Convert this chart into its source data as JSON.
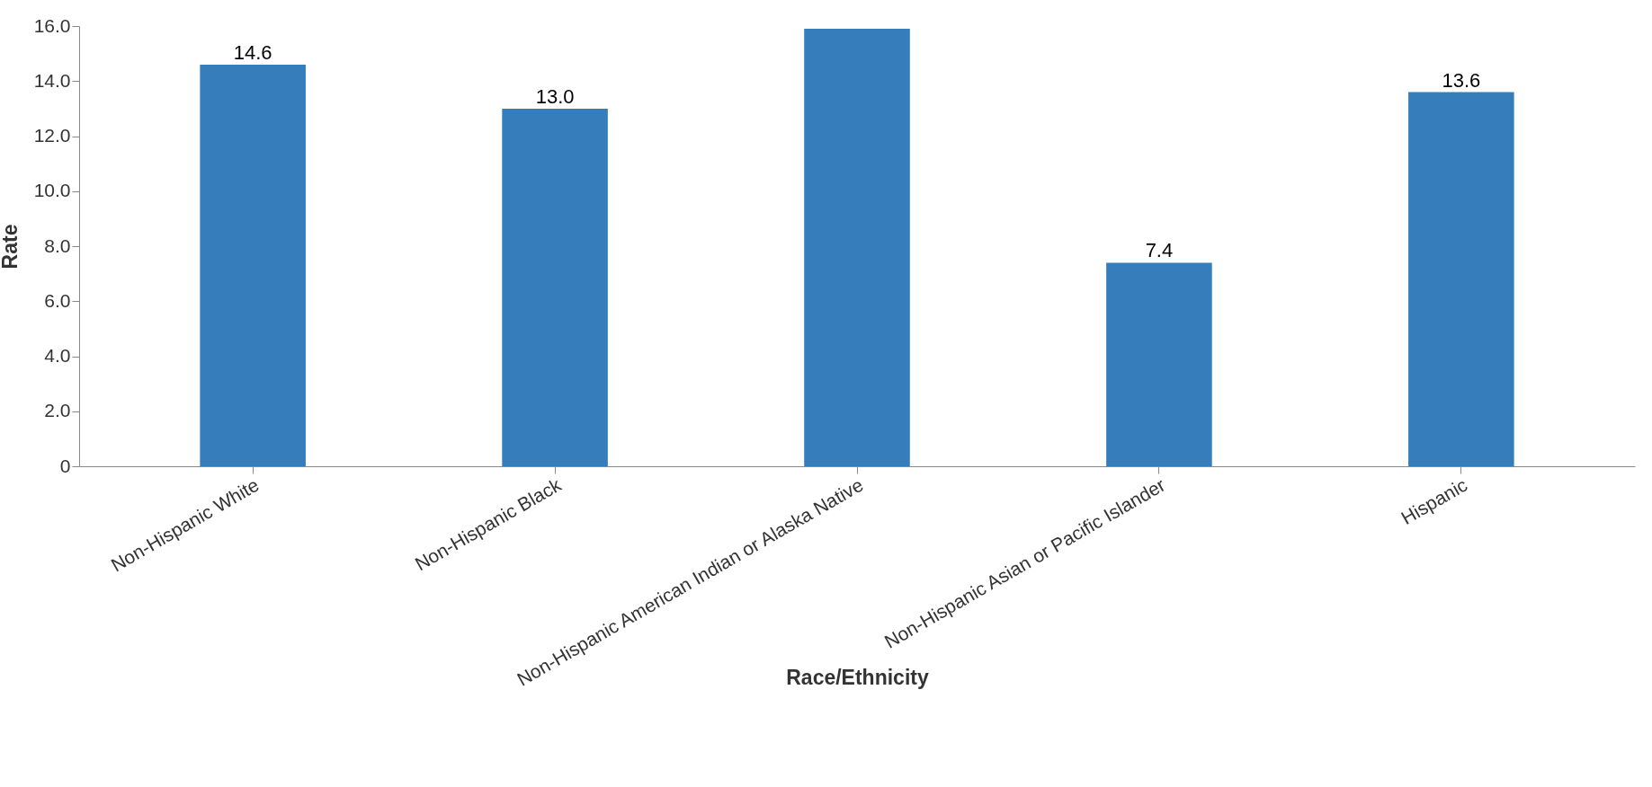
{
  "chart_data": {
    "type": "bar",
    "xlabel": "Race/Ethnicity",
    "ylabel": "Rate",
    "categories": [
      "Non-Hispanic White",
      "Non-Hispanic Black",
      "Non-Hispanic American Indian or Alaska Native",
      "Non-Hispanic Asian or Pacific Islander",
      "Hispanic"
    ],
    "values": [
      14.6,
      13.0,
      15.9,
      7.4,
      13.6
    ],
    "value_labels": [
      "14.6",
      "13.0",
      null,
      "7.4",
      "13.6"
    ],
    "color": "#367ebb",
    "ylim": [
      0,
      16
    ],
    "yticks": [
      0,
      {
        "value": 2,
        "label": "2.0"
      },
      {
        "value": 4,
        "label": "4.0"
      },
      {
        "value": 6,
        "label": "6.0"
      },
      {
        "value": 8,
        "label": "8.0"
      },
      {
        "value": 10,
        "label": "10.0"
      },
      {
        "value": 12,
        "label": "12.0"
      },
      {
        "value": 14,
        "label": "14.0"
      },
      {
        "value": 16,
        "label": "16.0"
      }
    ],
    "grid": false
  }
}
